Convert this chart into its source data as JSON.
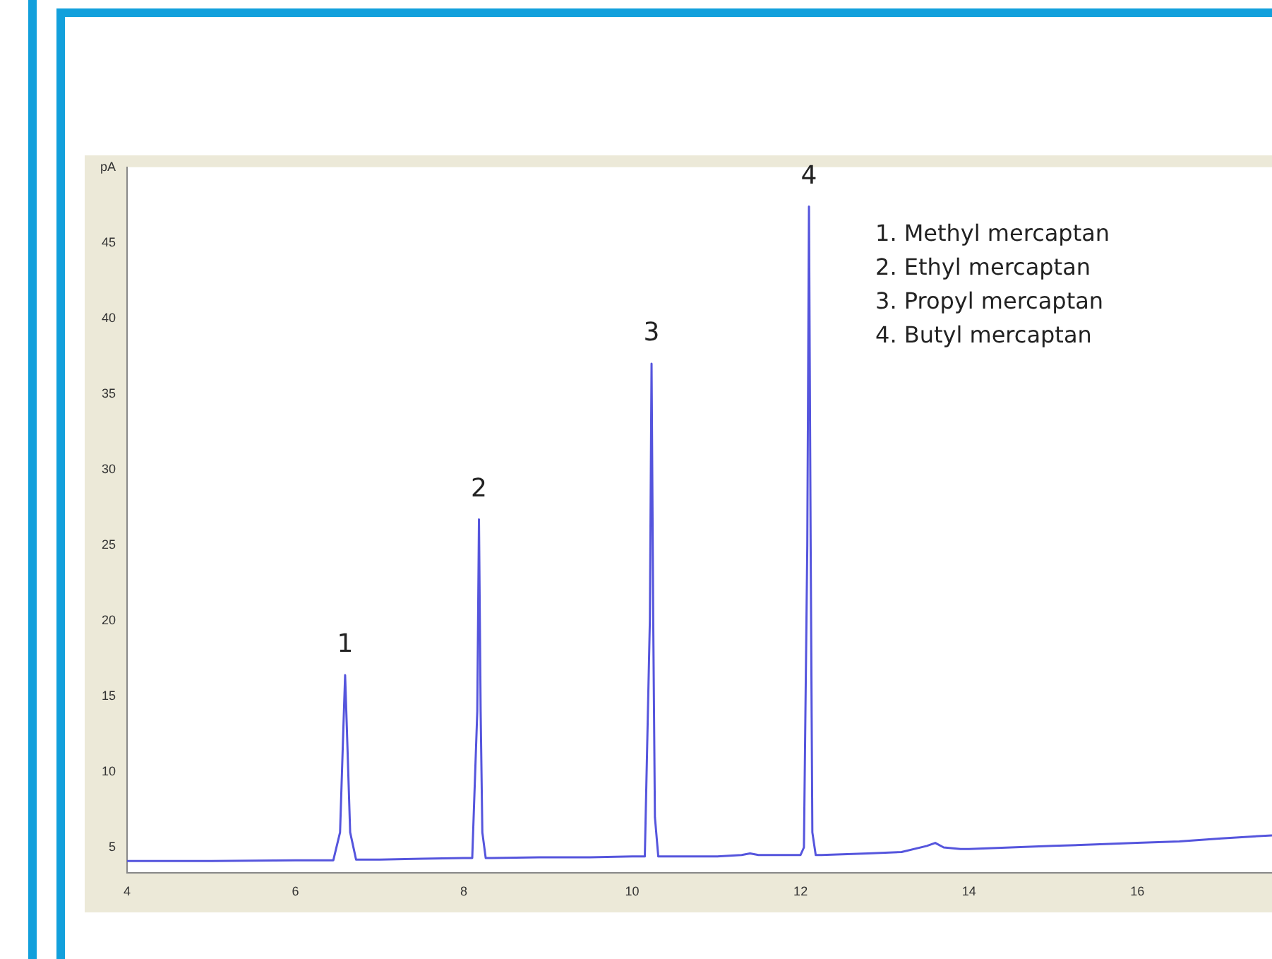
{
  "chart_data": {
    "type": "line",
    "color": "#5555dd",
    "x": [
      4,
      5,
      6,
      6.45,
      6.53,
      6.57,
      6.59,
      6.61,
      6.65,
      6.72,
      7,
      7.5,
      8,
      8.1,
      8.16,
      8.18,
      8.2,
      8.22,
      8.26,
      8.33,
      9,
      9.5,
      10,
      10.15,
      10.21,
      10.23,
      10.25,
      10.27,
      10.31,
      10.38,
      11,
      11.3,
      11.4,
      11.5,
      11.7,
      12,
      12.04,
      12.08,
      12.1,
      12.12,
      12.14,
      12.18,
      12.25,
      12.8,
      13.2,
      13.5,
      13.6,
      13.7,
      13.9,
      14,
      14.5,
      15,
      15.5,
      16,
      16.5,
      17,
      17.6
    ],
    "values": [
      4.1,
      4.1,
      4.15,
      4.15,
      6,
      13,
      16.4,
      13,
      6,
      4.2,
      4.2,
      4.25,
      4.3,
      4.3,
      14,
      26.7,
      14,
      6,
      4.3,
      4.3,
      4.35,
      4.35,
      4.4,
      4.4,
      20,
      37,
      20,
      7,
      4.4,
      4.4,
      4.4,
      4.5,
      4.6,
      4.5,
      4.5,
      4.5,
      5,
      25,
      47.4,
      25,
      6,
      4.5,
      4.5,
      4.6,
      4.7,
      5.1,
      5.3,
      5,
      4.9,
      4.9,
      5,
      5.1,
      5.2,
      5.3,
      5.4,
      5.6,
      5.8
    ],
    "xlim": [
      4,
      17.6
    ],
    "xticks": [
      4,
      6,
      8,
      10,
      12,
      14,
      16
    ],
    "ylim": [
      3.3,
      50
    ],
    "yticks": [
      5,
      10,
      15,
      20,
      25,
      30,
      35,
      40,
      45,
      {
        "value": 50,
        "label": "pA"
      }
    ],
    "grid": false,
    "legend": false,
    "marker": "none",
    "line_style": "solid",
    "annotations": [
      {
        "text": "1",
        "x": 6.59,
        "y": 16.4
      },
      {
        "text": "2",
        "x": 8.18,
        "y": 26.7
      },
      {
        "text": "3",
        "x": 10.23,
        "y": 37
      },
      {
        "text": "4",
        "x": 12.1,
        "y": 47.4
      },
      "1. Methyl mercaptan",
      "2. Ethyl mercaptan",
      "3. Propyl mercaptan",
      "4. Butyl mercaptan"
    ]
  }
}
